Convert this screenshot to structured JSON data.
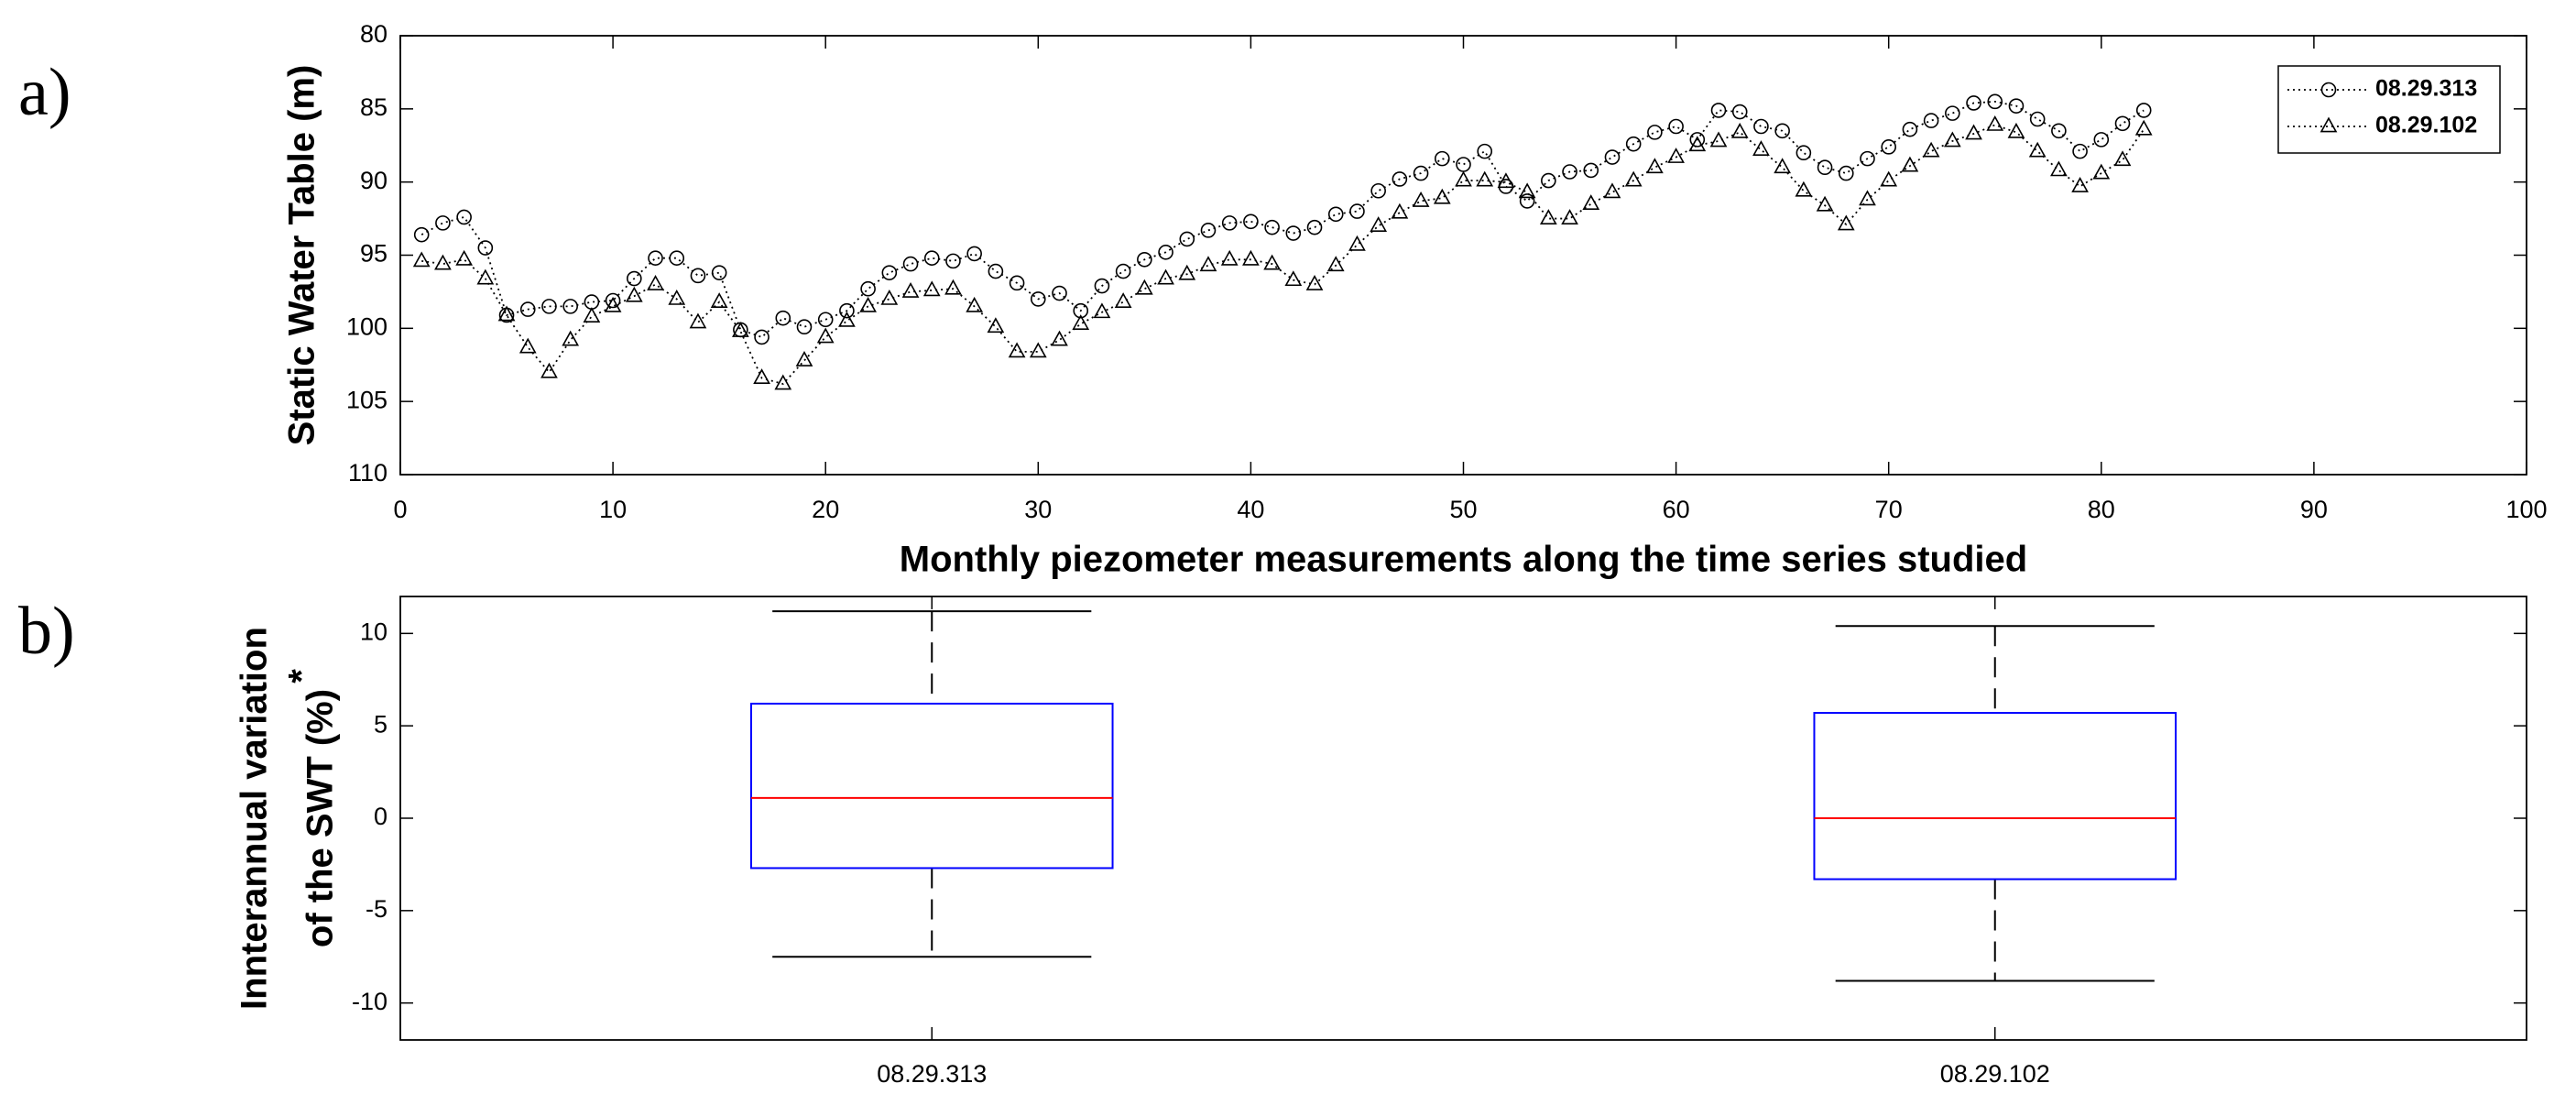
{
  "chart_data": [
    {
      "type": "line",
      "panel_label": "a)",
      "ylabel": "Static Water Table (m)",
      "xlabel": "Monthly piezometer measurements along the time series studied",
      "x": [
        1,
        2,
        3,
        4,
        5,
        6,
        7,
        8,
        9,
        10,
        11,
        12,
        13,
        14,
        15,
        16,
        17,
        18,
        19,
        20,
        21,
        22,
        23,
        24,
        25,
        26,
        27,
        28,
        29,
        30,
        31,
        32,
        33,
        34,
        35,
        36,
        37,
        38,
        39,
        40,
        41,
        42,
        43,
        44,
        45,
        46,
        47,
        48,
        49,
        50,
        51,
        52,
        53,
        54,
        55,
        56,
        57,
        58,
        59,
        60,
        61,
        62,
        63,
        64,
        65,
        66,
        67,
        68,
        69,
        70,
        71,
        72,
        73,
        74,
        75,
        76,
        77,
        78,
        79,
        80,
        81,
        82
      ],
      "series": [
        {
          "name": "08.29.313",
          "color": "#000000",
          "marker": "circle",
          "values": [
            93.6,
            92.8,
            92.4,
            94.5,
            99.1,
            98.7,
            98.5,
            98.5,
            98.2,
            98.1,
            96.6,
            95.2,
            95.2,
            96.4,
            96.2,
            100.1,
            100.6,
            99.3,
            99.9,
            99.4,
            98.8,
            97.3,
            96.2,
            95.6,
            95.2,
            95.4,
            94.9,
            96.1,
            96.9,
            98.0,
            97.6,
            98.8,
            97.1,
            96.1,
            95.3,
            94.8,
            93.9,
            93.3,
            92.8,
            92.7,
            93.1,
            93.5,
            93.1,
            92.2,
            92.0,
            90.6,
            89.8,
            89.4,
            88.4,
            88.8,
            87.9,
            90.3,
            91.3,
            89.9,
            89.3,
            89.2,
            88.3,
            87.4,
            86.6,
            86.2,
            87.1,
            85.1,
            85.2,
            86.2,
            86.5,
            88.0,
            89.0,
            89.4,
            88.4,
            87.6,
            86.4,
            85.8,
            85.3,
            84.6,
            84.5,
            84.8,
            85.7,
            86.5,
            87.9,
            87.1,
            86.0,
            85.1
          ]
        },
        {
          "name": "08.29.102",
          "color": "#000000",
          "marker": "triangle",
          "values": [
            95.4,
            95.6,
            95.3,
            96.6,
            99.1,
            101.3,
            103.0,
            100.8,
            99.2,
            98.5,
            97.8,
            97.0,
            98.0,
            99.6,
            98.2,
            100.2,
            103.4,
            103.8,
            102.2,
            100.6,
            99.5,
            98.5,
            98.0,
            97.5,
            97.4,
            97.3,
            98.5,
            99.9,
            101.6,
            101.6,
            100.8,
            99.7,
            98.9,
            98.2,
            97.3,
            96.6,
            96.3,
            95.7,
            95.3,
            95.3,
            95.6,
            96.7,
            97.0,
            95.7,
            94.3,
            93.0,
            92.1,
            91.3,
            91.1,
            89.9,
            89.9,
            90.0,
            90.7,
            92.5,
            92.5,
            91.5,
            90.7,
            89.9,
            89.0,
            88.3,
            87.5,
            87.2,
            86.6,
            87.8,
            89.0,
            90.6,
            91.6,
            92.9,
            91.2,
            89.9,
            88.9,
            87.9,
            87.2,
            86.7,
            86.1,
            86.6,
            87.9,
            89.2,
            90.3,
            89.4,
            88.5,
            86.4
          ]
        }
      ],
      "xlim": [
        0,
        100
      ],
      "xticks": [
        0,
        10,
        20,
        30,
        40,
        50,
        60,
        70,
        80,
        90,
        100
      ],
      "ylim": [
        80,
        110
      ],
      "yticks": [
        80,
        85,
        90,
        95,
        100,
        105,
        110
      ],
      "y_reversed": true,
      "legend": "upper right"
    },
    {
      "type": "box",
      "panel_label": "b)",
      "ylabel_lines": [
        "Innterannual variation",
        "of the SWT (%)"
      ],
      "ylabel_superscript": "*",
      "categories": [
        "08.29.313",
        "08.29.102"
      ],
      "boxes": [
        {
          "whislo": -7.5,
          "q1": -2.7,
          "med": 1.1,
          "q3": 6.2,
          "whishi": 11.2
        },
        {
          "whislo": -8.8,
          "q1": -3.3,
          "med": 0.0,
          "q3": 5.7,
          "whishi": 10.4
        }
      ],
      "box_color": "#0000ff",
      "median_color": "#ff0000",
      "whisker_color": "#000000",
      "ylim": [
        -12,
        12
      ],
      "yticks": [
        -10,
        -5,
        0,
        5,
        10
      ]
    }
  ]
}
